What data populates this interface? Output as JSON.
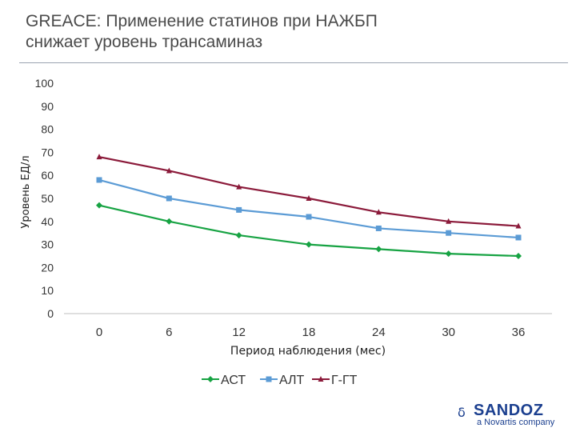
{
  "slide": {
    "title_line1": "GREACE: Применение статинов при НАЖБП",
    "title_line2": "снижает уровень трансаминаз"
  },
  "chart_data": {
    "type": "line",
    "x": [
      "0",
      "6",
      "12",
      "18",
      "24",
      "30",
      "36"
    ],
    "xlabel": "Период наблюдения (мес)",
    "ylabel": "Уровень ЕД/л",
    "ylim": [
      0,
      100
    ],
    "yticks": [
      "0",
      "10",
      "20",
      "30",
      "40",
      "50",
      "60",
      "70",
      "80",
      "90",
      "100"
    ],
    "grid": false,
    "legend_position": "bottom",
    "series": [
      {
        "name": "АСТ",
        "color": "#17a343",
        "marker": "diamond",
        "values": [
          47,
          40,
          34,
          30,
          28,
          26,
          25
        ]
      },
      {
        "name": "АЛТ",
        "color": "#5b9bd5",
        "marker": "square",
        "values": [
          58,
          50,
          45,
          42,
          37,
          35,
          33
        ]
      },
      {
        "name": "Г-ГТ",
        "color": "#8b1a3a",
        "marker": "triangle",
        "values": [
          68,
          62,
          55,
          50,
          44,
          40,
          38
        ]
      }
    ]
  },
  "logo": {
    "text": "SANDOZ",
    "tagline": "a Novartis company",
    "glyph": "ẟ",
    "color": "#1b3f8f"
  }
}
